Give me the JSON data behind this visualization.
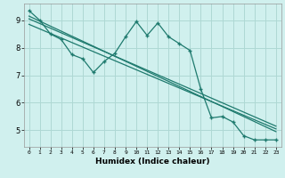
{
  "xlabel": "Humidex (Indice chaleur)",
  "bg_color": "#d0f0ee",
  "grid_color": "#aed8d4",
  "line_color": "#1e7a6e",
  "xlim": [
    -0.5,
    23.5
  ],
  "ylim": [
    4.4,
    9.6
  ],
  "yticks": [
    5,
    6,
    7,
    8,
    9
  ],
  "xticks": [
    0,
    1,
    2,
    3,
    4,
    5,
    6,
    7,
    8,
    9,
    10,
    11,
    12,
    13,
    14,
    15,
    16,
    17,
    18,
    19,
    20,
    21,
    22,
    23
  ],
  "series1_x": [
    0,
    1,
    2,
    3,
    4,
    5,
    6,
    7,
    8,
    9,
    10,
    11,
    12,
    13,
    14,
    15,
    16,
    17,
    18,
    19,
    20,
    21,
    22,
    23
  ],
  "series1_y": [
    9.35,
    9.0,
    8.5,
    8.3,
    7.75,
    7.6,
    7.1,
    7.5,
    7.8,
    8.4,
    8.95,
    8.45,
    8.9,
    8.4,
    8.15,
    7.9,
    6.5,
    5.45,
    5.5,
    5.3,
    4.8,
    4.65,
    4.65,
    4.65
  ],
  "line1_x": [
    0,
    23
  ],
  "line1_y": [
    9.05,
    5.15
  ],
  "line2_x": [
    0,
    23
  ],
  "line2_y": [
    8.85,
    5.05
  ],
  "line3_x": [
    0,
    23
  ],
  "line3_y": [
    9.15,
    4.95
  ]
}
